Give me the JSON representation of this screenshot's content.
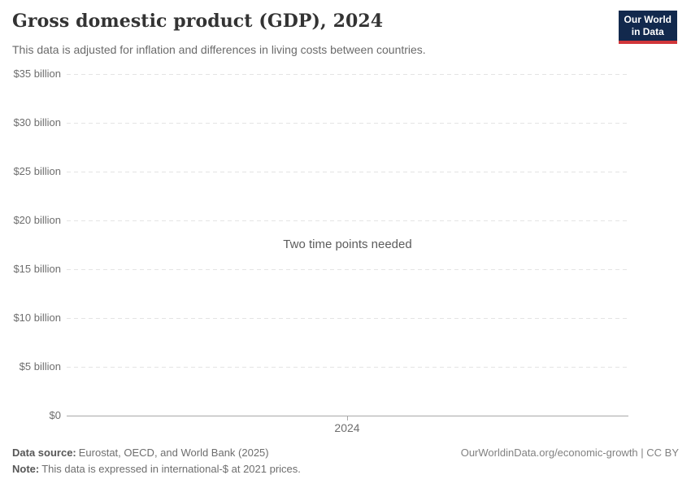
{
  "header": {
    "title": "Gross domestic product (GDP), 2024",
    "subtitle": "This data is adjusted for inflation and differences in living costs between countries.",
    "logo_line1": "Our World",
    "logo_line2": "in Data"
  },
  "chart_data": {
    "type": "line",
    "title": "Gross domestic product (GDP), 2024",
    "subtitle": "This data is adjusted for inflation and differences in living costs between countries.",
    "empty_state_message": "Two time points needed",
    "series": [],
    "x": [],
    "xlabel": "",
    "ylabel": "",
    "x_ticks": [
      {
        "label": "2024"
      }
    ],
    "y_ticks": [
      {
        "label": "$35 billion",
        "value": 35000000000
      },
      {
        "label": "$30 billion",
        "value": 30000000000
      },
      {
        "label": "$25 billion",
        "value": 25000000000
      },
      {
        "label": "$20 billion",
        "value": 20000000000
      },
      {
        "label": "$15 billion",
        "value": 15000000000
      },
      {
        "label": "$10 billion",
        "value": 10000000000
      },
      {
        "label": "$5 billion",
        "value": 5000000000
      },
      {
        "label": "$0",
        "value": 0
      }
    ],
    "ylim": [
      0,
      35000000000
    ],
    "grid": "horizontal-dashed",
    "legend": "none"
  },
  "footer": {
    "data_source_label": "Data source:",
    "data_source": "Eurostat, OECD, and World Bank (2025)",
    "note_label": "Note:",
    "note": "This data is expressed in international-$ at 2021 prices.",
    "link": "OurWorldinData.org/economic-growth | CC BY"
  },
  "colors": {
    "logo_background": "#12294d",
    "logo_underline": "#d0363a",
    "title_text": "#333333",
    "subtitle_text": "#6b6b6b",
    "axis_text": "#6e6e6e",
    "gridline": "#e4e4e4",
    "axis_line": "#a8a8a8",
    "background": "#ffffff"
  }
}
